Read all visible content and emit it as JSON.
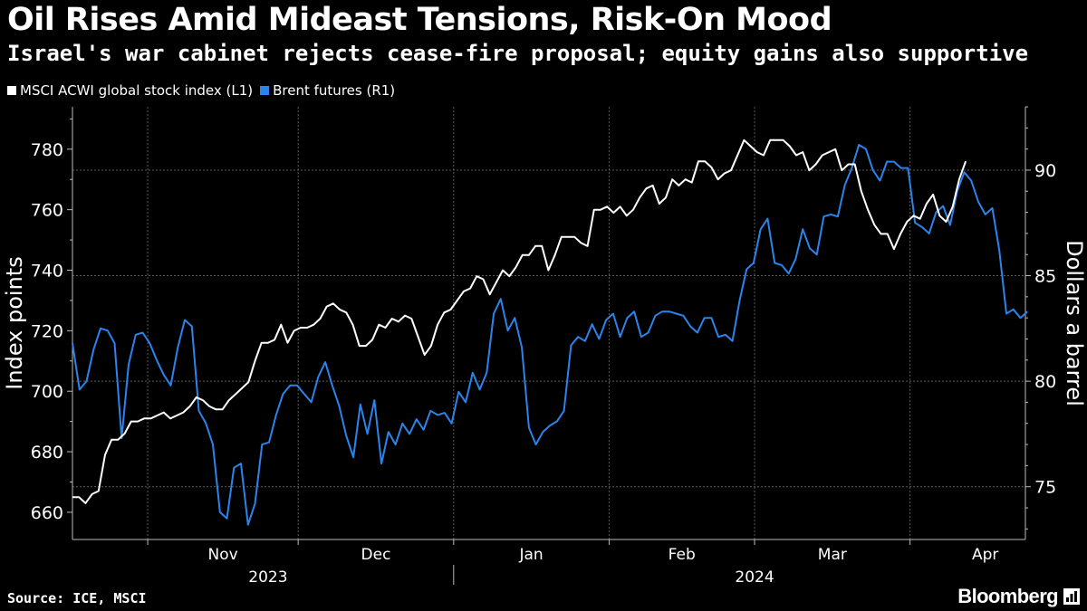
{
  "header": {
    "title": "Oil Rises Amid Mideast Tensions, Risk-On Mood",
    "subtitle": "Israel's war cabinet rejects cease-fire proposal; equity gains also supportive"
  },
  "legend": [
    {
      "label": "MSCI ACWI global stock index (L1)",
      "color": "#ffffff"
    },
    {
      "label": "Brent futures (R1)",
      "color": "#2b84ec"
    }
  ],
  "footer": {
    "source": "Source: ICE, MSCI",
    "brand": "Bloomberg",
    "brand_icon": "bloomberg-logo-icon"
  },
  "chart_data": {
    "type": "line",
    "title": "Oil Rises Amid Mideast Tensions, Risk-On Mood",
    "x_range": [
      "2023-10-17",
      "2024-04-24"
    ],
    "x_months": [
      {
        "label": "Nov",
        "start": "2023-11-01"
      },
      {
        "label": "Dec",
        "start": "2023-12-01"
      },
      {
        "label": "Jan",
        "start": "2024-01-01"
      },
      {
        "label": "Feb",
        "start": "2024-02-01"
      },
      {
        "label": "Mar",
        "start": "2024-03-01"
      },
      {
        "label": "Apr",
        "start": "2024-04-01"
      }
    ],
    "x_years": [
      {
        "label": "2023",
        "center": "2023-11-25"
      },
      {
        "label": "2024",
        "center": "2024-03-01"
      }
    ],
    "year_divider": "2024-01-01",
    "month_gridlines": [
      "2023-11-01",
      "2023-12-01",
      "2024-01-01",
      "2024-02-01",
      "2024-03-01",
      "2024-04-01"
    ],
    "y_left": {
      "label": "Index points",
      "range": [
        651,
        794
      ],
      "ticks": [
        660,
        680,
        700,
        720,
        740,
        760,
        780
      ]
    },
    "y_right": {
      "label": "Dollars a barrel",
      "range": [
        72.5,
        93
      ],
      "ticks": [
        75,
        80,
        85,
        90
      ]
    },
    "series": [
      {
        "name": "MSCI ACWI global stock index (L1)",
        "axis": "left",
        "color": "#ffffff",
        "start": "2023-10-17",
        "step_days": 1.3,
        "values": [
          665,
          665,
          663,
          666,
          667,
          679,
          684,
          684,
          686,
          690,
          690,
          691,
          691,
          692,
          693,
          691,
          692,
          693,
          695,
          698,
          697,
          695,
          694,
          694,
          697,
          699,
          701,
          703,
          710,
          716,
          716,
          717,
          722,
          716,
          720,
          721,
          721,
          722,
          724,
          728,
          729,
          727,
          726,
          722,
          715,
          715,
          717,
          722,
          721,
          724,
          723,
          725,
          724,
          718,
          712,
          715,
          722,
          726,
          727,
          730,
          733,
          734,
          738,
          737,
          732,
          736,
          740,
          738,
          741,
          745,
          745,
          748,
          748,
          740,
          745,
          751,
          751,
          751,
          749,
          748,
          760,
          760,
          761,
          759,
          761,
          758,
          760,
          764,
          767,
          768,
          762,
          764,
          770,
          768,
          770,
          769,
          776,
          776,
          774,
          770,
          772,
          773,
          778,
          783,
          781,
          779,
          778,
          783,
          783,
          783,
          781,
          778,
          779,
          773,
          775,
          778,
          779,
          780,
          773,
          775,
          775,
          766,
          760,
          755,
          752,
          752,
          747,
          752,
          756,
          758,
          757,
          762,
          765,
          758,
          756,
          761,
          770,
          776
        ]
      },
      {
        "name": "Brent futures (R1)",
        "axis": "right",
        "color": "#2b84ec",
        "start": "2023-10-17",
        "step_days": 1.4,
        "values": [
          81.8,
          79.6,
          80.0,
          81.5,
          82.5,
          82.4,
          81.8,
          77.3,
          80.8,
          82.2,
          82.3,
          81.8,
          81.0,
          80.3,
          79.8,
          81.6,
          82.9,
          82.6,
          78.6,
          78.0,
          77.0,
          73.8,
          73.5,
          75.9,
          76.1,
          73.2,
          74.2,
          77.0,
          77.1,
          78.4,
          79.4,
          79.8,
          79.8,
          79.4,
          79.0,
          80.2,
          80.9,
          79.8,
          78.8,
          77.4,
          76.4,
          78.9,
          77.5,
          79.1,
          76.1,
          77.6,
          77.0,
          78.0,
          77.5,
          78.2,
          77.7,
          78.6,
          78.4,
          78.5,
          78.0,
          79.5,
          79.0,
          80.4,
          79.6,
          80.4,
          83.2,
          83.9,
          82.4,
          83.0,
          81.6,
          77.8,
          77.0,
          77.6,
          77.9,
          78.1,
          78.6,
          81.7,
          82.1,
          81.9,
          82.7,
          82.0,
          82.9,
          83.2,
          82.1,
          83.0,
          83.3,
          82.1,
          82.3,
          83.1,
          83.3,
          83.3,
          83.2,
          83.1,
          82.6,
          82.3,
          83.0,
          83.0,
          82.1,
          82.2,
          81.9,
          83.8,
          85.3,
          85.6,
          87.2,
          87.7,
          85.6,
          85.5,
          85.1,
          85.8,
          87.2,
          86.3,
          86.0,
          87.8,
          87.9,
          87.8,
          89.3,
          90.1,
          91.2,
          91.0,
          90.0,
          89.5,
          90.4,
          90.4,
          90.1,
          90.1,
          87.5,
          87.3,
          87.0,
          88.0,
          88.3,
          87.4,
          89.0,
          89.9,
          89.5,
          88.5,
          87.9,
          88.2,
          86.2,
          83.2,
          83.4,
          83.0,
          83.3
        ]
      }
    ]
  }
}
